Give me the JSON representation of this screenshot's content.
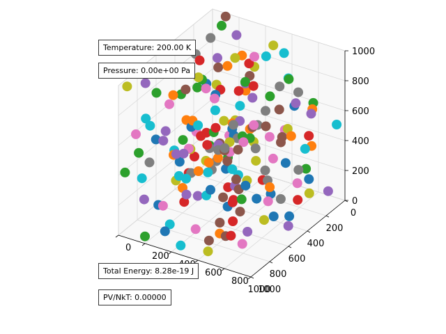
{
  "info": {
    "temperature": "Temperature: 200.00 K",
    "pressure": "Pressure: 0.00e+00 Pa",
    "total_energy": "Total Energy: 8.28e-19 J",
    "pv_nkt": "PV/NkT: 0.00000"
  },
  "chart_data": {
    "type": "scatter",
    "projection": "3d",
    "title": "",
    "xlabel": "",
    "ylabel": "",
    "zlabel": "",
    "xlim": [
      0,
      1000
    ],
    "ylim": [
      0,
      1000
    ],
    "zlim": [
      0,
      1000
    ],
    "x_ticks": [
      "0",
      "200",
      "400",
      "600",
      "800",
      "1000"
    ],
    "y_ticks": [
      "0",
      "200",
      "400",
      "600",
      "800",
      "1000"
    ],
    "z_ticks": [
      "0",
      "200",
      "400",
      "600",
      "800",
      "1000"
    ],
    "grid": true,
    "particle_count": 200,
    "colors": [
      "#1f77b4",
      "#ff7f0e",
      "#2ca02c",
      "#d62728",
      "#9467bd",
      "#8c564b",
      "#e377c2",
      "#7f7f7f",
      "#bcbd22",
      "#17becf"
    ]
  }
}
